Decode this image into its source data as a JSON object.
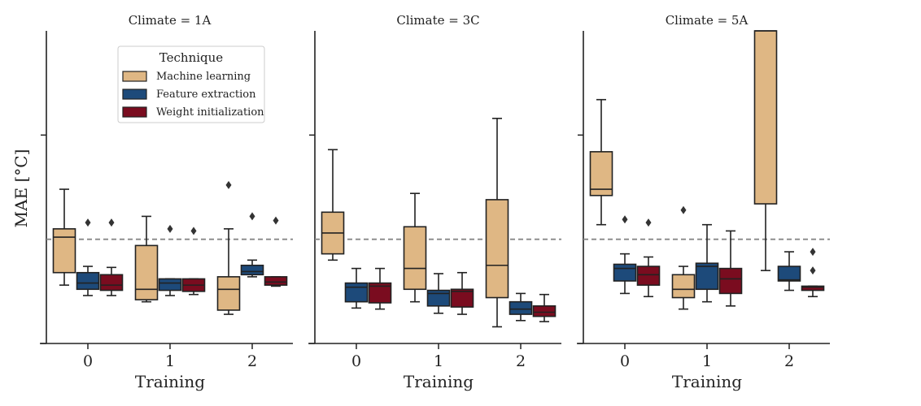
{
  "chart_data": {
    "type": "boxplot",
    "facet_label_prefix": "Climate = ",
    "xlabel": "Training",
    "ylabel": "MAE [°C]",
    "ylim": [
      0,
      1.5
    ],
    "y_ticks": [
      0,
      1
    ],
    "reference_line": 0.5,
    "categories": [
      "0",
      "1",
      "2"
    ],
    "legend": {
      "title": "Technique",
      "placement": "top-left of first panel",
      "entries": [
        {
          "name": "Machine learning",
          "color": "#dfb784"
        },
        {
          "name": "Feature extraction",
          "color": "#1d4a7a"
        },
        {
          "name": "Weight initialization",
          "color": "#7a0c1f"
        }
      ]
    },
    "facets": [
      {
        "climate": "1A",
        "title": "Climate = 1A",
        "boxes": [
          [
            {
              "whislo": 0.28,
              "q1": 0.34,
              "med": 0.51,
              "q3": 0.55,
              "whishi": 0.74,
              "fliers": []
            },
            {
              "whislo": 0.23,
              "q1": 0.26,
              "med": 0.29,
              "q3": 0.34,
              "whishi": 0.37,
              "fliers": [
                0.58
              ]
            },
            {
              "whislo": 0.23,
              "q1": 0.255,
              "med": 0.28,
              "q3": 0.33,
              "whishi": 0.365,
              "fliers": [
                0.58
              ]
            }
          ],
          [
            {
              "whislo": 0.2,
              "q1": 0.21,
              "med": 0.26,
              "q3": 0.47,
              "whishi": 0.61,
              "fliers": []
            },
            {
              "whislo": 0.23,
              "q1": 0.255,
              "med": 0.29,
              "q3": 0.31,
              "whishi": 0.31,
              "fliers": [
                0.55
              ]
            },
            {
              "whislo": 0.235,
              "q1": 0.25,
              "med": 0.28,
              "q3": 0.31,
              "whishi": 0.31,
              "fliers": [
                0.54
              ]
            }
          ],
          [
            {
              "whislo": 0.14,
              "q1": 0.16,
              "med": 0.26,
              "q3": 0.32,
              "whishi": 0.55,
              "fliers": [
                0.76
              ]
            },
            {
              "whislo": 0.32,
              "q1": 0.33,
              "med": 0.345,
              "q3": 0.375,
              "whishi": 0.4,
              "fliers": [
                0.61
              ]
            },
            {
              "whislo": 0.275,
              "q1": 0.28,
              "med": 0.295,
              "q3": 0.32,
              "whishi": 0.32,
              "fliers": [
                0.59
              ]
            }
          ]
        ]
      },
      {
        "climate": "3C",
        "title": "Climate = 3C",
        "boxes": [
          [
            {
              "whislo": 0.4,
              "q1": 0.43,
              "med": 0.53,
              "q3": 0.63,
              "whishi": 0.93,
              "fliers": []
            },
            {
              "whislo": 0.17,
              "q1": 0.2,
              "med": 0.27,
              "q3": 0.29,
              "whishi": 0.36,
              "fliers": []
            },
            {
              "whislo": 0.165,
              "q1": 0.195,
              "med": 0.275,
              "q3": 0.29,
              "whishi": 0.36,
              "fliers": []
            }
          ],
          [
            {
              "whislo": 0.2,
              "q1": 0.26,
              "med": 0.36,
              "q3": 0.56,
              "whishi": 0.72,
              "fliers": []
            },
            {
              "whislo": 0.145,
              "q1": 0.18,
              "med": 0.24,
              "q3": 0.255,
              "whishi": 0.335,
              "fliers": []
            },
            {
              "whislo": 0.14,
              "q1": 0.175,
              "med": 0.25,
              "q3": 0.26,
              "whishi": 0.34,
              "fliers": []
            }
          ],
          [
            {
              "whislo": 0.08,
              "q1": 0.22,
              "med": 0.375,
              "q3": 0.69,
              "whishi": 1.08,
              "fliers": []
            },
            {
              "whislo": 0.11,
              "q1": 0.14,
              "med": 0.165,
              "q3": 0.2,
              "whishi": 0.24,
              "fliers": []
            },
            {
              "whislo": 0.105,
              "q1": 0.13,
              "med": 0.15,
              "q3": 0.18,
              "whishi": 0.235,
              "fliers": []
            }
          ]
        ]
      },
      {
        "climate": "5A",
        "title": "Climate = 5A",
        "boxes": [
          [
            {
              "whislo": 0.57,
              "q1": 0.71,
              "med": 0.74,
              "q3": 0.92,
              "whishi": 1.17,
              "fliers": []
            },
            {
              "whislo": 0.24,
              "q1": 0.3,
              "med": 0.36,
              "q3": 0.38,
              "whishi": 0.43,
              "fliers": [
                0.595
              ]
            },
            {
              "whislo": 0.225,
              "q1": 0.28,
              "med": 0.33,
              "q3": 0.37,
              "whishi": 0.415,
              "fliers": [
                0.58
              ]
            }
          ],
          [
            {
              "whislo": 0.165,
              "q1": 0.22,
              "med": 0.26,
              "q3": 0.33,
              "whishi": 0.37,
              "fliers": [
                0.64
              ]
            },
            {
              "whislo": 0.2,
              "q1": 0.26,
              "med": 0.37,
              "q3": 0.385,
              "whishi": 0.57,
              "fliers": []
            },
            {
              "whislo": 0.18,
              "q1": 0.24,
              "med": 0.31,
              "q3": 0.36,
              "whishi": 0.54,
              "fliers": []
            }
          ],
          [
            {
              "whislo": 0.35,
              "q1": 0.67,
              "med": 1.55,
              "q3": 1.55,
              "whishi": 1.55,
              "fliers": []
            },
            {
              "whislo": 0.255,
              "q1": 0.3,
              "med": 0.305,
              "q3": 0.37,
              "whishi": 0.44,
              "fliers": []
            },
            {
              "whislo": 0.225,
              "q1": 0.255,
              "med": 0.27,
              "q3": 0.275,
              "whishi": 0.275,
              "fliers": [
                0.35,
                0.44
              ]
            }
          ]
        ]
      }
    ]
  }
}
